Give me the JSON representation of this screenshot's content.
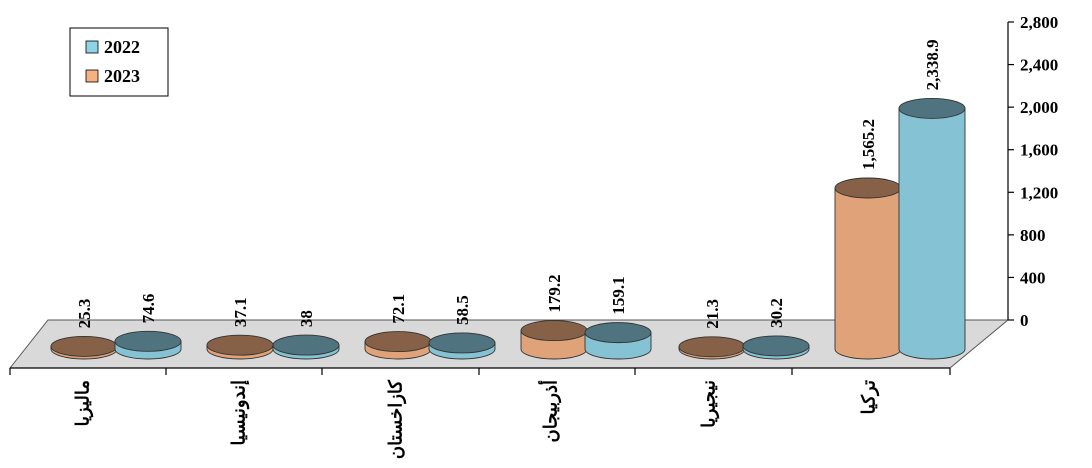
{
  "chart_data": {
    "type": "bar",
    "style": "3d-cylinder",
    "categories": [
      "ماليزيا",
      "إندونيسيا",
      "كازاخستان",
      "أذربيجان",
      "نيجيريا",
      "تركيا"
    ],
    "series": [
      {
        "name": "2023",
        "color": "#f4b183",
        "values": [
          25.3,
          37.1,
          72.1,
          179.2,
          21.3,
          1565.2
        ],
        "labels": [
          "25.3",
          "37.1",
          "72.1",
          "179.2",
          "21.3",
          "1,565.2"
        ]
      },
      {
        "name": "2022",
        "color": "#8fd3e6",
        "values": [
          74.6,
          38,
          58.5,
          159.1,
          30.2,
          2338.9
        ],
        "labels": [
          "74.6",
          "38",
          "58.5",
          "159.1",
          "30.2",
          "2,338.9"
        ]
      }
    ],
    "yticks": [
      "0",
      "400",
      "800",
      "1,200",
      "1,600",
      "2,000",
      "2,400",
      "2,800"
    ],
    "ylim": [
      0,
      2800
    ],
    "axis_position": "right",
    "legend": {
      "position": "top-left",
      "entries": [
        "2022",
        "2023"
      ]
    },
    "grid": false
  }
}
